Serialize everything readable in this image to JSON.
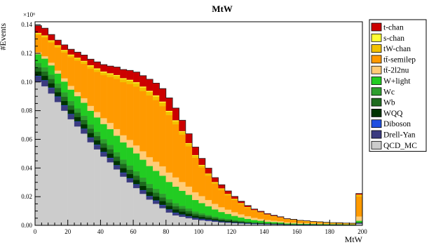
{
  "chart_data": {
    "type": "bar",
    "stacked": true,
    "title": "MtW",
    "xlabel": "MtW",
    "ylabel": "#Events",
    "y_multiplier_label": "×10⁶",
    "xlim": [
      0,
      200
    ],
    "ylim": [
      0,
      0.142
    ],
    "bin_width": 4,
    "x_ticks": [
      0,
      20,
      40,
      60,
      80,
      100,
      120,
      140,
      160,
      180,
      200
    ],
    "x_tick_labels": [
      "0",
      "20",
      "40",
      "60",
      "80",
      "100",
      "120",
      "140",
      "160",
      "180",
      "200"
    ],
    "y_ticks": [
      0,
      0.02,
      0.04,
      0.06,
      0.08,
      0.1,
      0.12,
      0.14
    ],
    "y_tick_labels": [
      "0.00",
      "0.02",
      "0.04",
      "0.06",
      "0.08",
      "0.10",
      "0.12",
      "0.14"
    ],
    "legend_position": "right",
    "x": [
      2,
      6,
      10,
      14,
      18,
      22,
      26,
      30,
      34,
      38,
      42,
      46,
      50,
      54,
      58,
      62,
      66,
      70,
      74,
      78,
      82,
      86,
      90,
      94,
      98,
      102,
      106,
      110,
      114,
      118,
      122,
      126,
      130,
      134,
      138,
      142,
      146,
      150,
      154,
      158,
      162,
      166,
      170,
      174,
      178,
      182,
      186,
      190,
      194,
      198
    ],
    "series": [
      {
        "name": "QCD_MC",
        "color": "#cccccc",
        "values": [
          0.1,
          0.097,
          0.092,
          0.086,
          0.08,
          0.074,
          0.069,
          0.064,
          0.058,
          0.053,
          0.048,
          0.044,
          0.039,
          0.034,
          0.03,
          0.026,
          0.022,
          0.018,
          0.015,
          0.012,
          0.009,
          0.007,
          0.006,
          0.005,
          0.004,
          0.0035,
          0.003,
          0.0025,
          0.002,
          0.0018,
          0.0015,
          0.0013,
          0.0011,
          0.0009,
          0.0008,
          0.0007,
          0.0006,
          0.0005,
          0.0004,
          0.0004,
          0.0003,
          0.0003,
          0.0003,
          0.0002,
          0.0002,
          0.0002,
          0.0002,
          0.0001,
          0.0001,
          0.0012
        ]
      },
      {
        "name": "Drell-Yan",
        "color": "#3b3b80",
        "values": [
          0.004,
          0.004,
          0.0038,
          0.0036,
          0.0035,
          0.0034,
          0.0033,
          0.0032,
          0.0031,
          0.003,
          0.0029,
          0.0028,
          0.0027,
          0.0026,
          0.0025,
          0.0024,
          0.0023,
          0.0022,
          0.0021,
          0.002,
          0.0018,
          0.0016,
          0.0014,
          0.0012,
          0.001,
          0.0009,
          0.0008,
          0.0007,
          0.0006,
          0.0005,
          0.0004,
          0.0004,
          0.0003,
          0.0003,
          0.0002,
          0.0002,
          0.0002,
          0.0002,
          0.0001,
          0.0001,
          0.0001,
          0.0001,
          0.0001,
          0.0001,
          0.0001,
          0.0001,
          0.0001,
          0.0001,
          0.0001,
          0.0003
        ]
      },
      {
        "name": "Diboson",
        "color": "#1f4fe0",
        "values": [
          0.0003,
          0.0003,
          0.0003,
          0.0003,
          0.0003,
          0.0003,
          0.0003,
          0.0003,
          0.0003,
          0.0003,
          0.0003,
          0.0003,
          0.0003,
          0.0003,
          0.0003,
          0.0003,
          0.0003,
          0.0003,
          0.0003,
          0.0003,
          0.0003,
          0.0003,
          0.0002,
          0.0002,
          0.0002,
          0.0002,
          0.0002,
          0.0002,
          0.0001,
          0.0001,
          0.0001,
          0.0001,
          0.0001,
          0.0001,
          0.0001,
          0.0001,
          0.0001,
          0.0001,
          0.0001,
          0.0001,
          0.0001,
          0.0001,
          0.0001,
          0.0001,
          0.0001,
          0.0001,
          0.0001,
          0.0001,
          0.0001,
          0.0001
        ]
      },
      {
        "name": "WQQ",
        "color": "#003300",
        "values": [
          0.003,
          0.003,
          0.003,
          0.003,
          0.003,
          0.003,
          0.003,
          0.003,
          0.003,
          0.003,
          0.003,
          0.003,
          0.003,
          0.003,
          0.003,
          0.003,
          0.0029,
          0.0028,
          0.0027,
          0.0026,
          0.0024,
          0.0022,
          0.002,
          0.0018,
          0.0015,
          0.0013,
          0.0011,
          0.0009,
          0.0008,
          0.0007,
          0.0006,
          0.0005,
          0.0004,
          0.0003,
          0.0003,
          0.0002,
          0.0002,
          0.0002,
          0.0001,
          0.0001,
          0.0001,
          0.0001,
          0.0001,
          0.0001,
          0.0001,
          0.0001,
          0.0001,
          0.0001,
          0.0001,
          0.0002
        ]
      },
      {
        "name": "Wb",
        "color": "#1e6b1e",
        "values": [
          0.003,
          0.003,
          0.003,
          0.003,
          0.003,
          0.003,
          0.003,
          0.003,
          0.003,
          0.003,
          0.003,
          0.003,
          0.003,
          0.003,
          0.003,
          0.003,
          0.0029,
          0.0028,
          0.0027,
          0.0026,
          0.0024,
          0.0022,
          0.002,
          0.0018,
          0.0015,
          0.0013,
          0.0011,
          0.0009,
          0.0008,
          0.0007,
          0.0006,
          0.0005,
          0.0004,
          0.0003,
          0.0003,
          0.0002,
          0.0002,
          0.0002,
          0.0001,
          0.0001,
          0.0001,
          0.0001,
          0.0001,
          0.0001,
          0.0001,
          0.0001,
          0.0001,
          0.0001,
          0.0001,
          0.0002
        ]
      },
      {
        "name": "Wc",
        "color": "#2e9e2e",
        "values": [
          0.003,
          0.003,
          0.003,
          0.003,
          0.003,
          0.003,
          0.003,
          0.003,
          0.003,
          0.003,
          0.003,
          0.003,
          0.003,
          0.003,
          0.003,
          0.003,
          0.0029,
          0.0028,
          0.0027,
          0.0026,
          0.0024,
          0.0022,
          0.002,
          0.0018,
          0.0015,
          0.0013,
          0.0011,
          0.0009,
          0.0008,
          0.0007,
          0.0006,
          0.0005,
          0.0004,
          0.0003,
          0.0003,
          0.0002,
          0.0002,
          0.0002,
          0.0001,
          0.0001,
          0.0001,
          0.0001,
          0.0001,
          0.0001,
          0.0001,
          0.0001,
          0.0001,
          0.0001,
          0.0001,
          0.0002
        ]
      },
      {
        "name": "W+light",
        "color": "#22cc22",
        "values": [
          0.006,
          0.006,
          0.0065,
          0.007,
          0.0075,
          0.008,
          0.0085,
          0.009,
          0.0095,
          0.01,
          0.0105,
          0.011,
          0.0115,
          0.012,
          0.0125,
          0.0125,
          0.0125,
          0.0125,
          0.0125,
          0.0125,
          0.012,
          0.0115,
          0.0105,
          0.0095,
          0.008,
          0.007,
          0.006,
          0.005,
          0.0042,
          0.0035,
          0.0028,
          0.0022,
          0.0018,
          0.0015,
          0.0012,
          0.001,
          0.0008,
          0.0006,
          0.0005,
          0.0004,
          0.0003,
          0.0003,
          0.0002,
          0.0002,
          0.0002,
          0.0001,
          0.0001,
          0.0001,
          0.0001,
          0.001
        ]
      },
      {
        "name": "tt̄-2l2nu",
        "color": "#ffcc77",
        "values": [
          0.0015,
          0.0017,
          0.0019,
          0.0021,
          0.0023,
          0.0026,
          0.0029,
          0.0032,
          0.0035,
          0.0038,
          0.0041,
          0.0044,
          0.0047,
          0.005,
          0.0053,
          0.0056,
          0.0059,
          0.0062,
          0.0064,
          0.0066,
          0.0066,
          0.0065,
          0.0062,
          0.0058,
          0.0054,
          0.0049,
          0.0044,
          0.0039,
          0.0034,
          0.003,
          0.0026,
          0.0022,
          0.0019,
          0.0016,
          0.0014,
          0.0012,
          0.001,
          0.0009,
          0.0008,
          0.0007,
          0.0006,
          0.0005,
          0.0004,
          0.0004,
          0.0003,
          0.0003,
          0.0003,
          0.0002,
          0.0002,
          0.003
        ]
      },
      {
        "name": "tt̄-semilep",
        "color": "#ff9a00",
        "values": [
          0.012,
          0.013,
          0.014,
          0.016,
          0.018,
          0.02,
          0.022,
          0.024,
          0.026,
          0.028,
          0.03,
          0.032,
          0.035,
          0.037,
          0.039,
          0.041,
          0.042,
          0.043,
          0.043,
          0.042,
          0.04,
          0.037,
          0.033,
          0.028,
          0.024,
          0.02,
          0.017,
          0.014,
          0.012,
          0.01,
          0.0085,
          0.007,
          0.0058,
          0.0048,
          0.004,
          0.0034,
          0.0028,
          0.0023,
          0.0019,
          0.0016,
          0.0013,
          0.0011,
          0.0009,
          0.0008,
          0.0006,
          0.0005,
          0.0004,
          0.0004,
          0.0003,
          0.014
        ]
      },
      {
        "name": "tW-chan",
        "color": "#f2c200",
        "values": [
          0.001,
          0.001,
          0.0011,
          0.0012,
          0.0013,
          0.0014,
          0.0015,
          0.0016,
          0.0017,
          0.0018,
          0.0019,
          0.002,
          0.0021,
          0.0022,
          0.0023,
          0.0024,
          0.0025,
          0.0026,
          0.0026,
          0.0025,
          0.0024,
          0.0022,
          0.002,
          0.0018,
          0.0016,
          0.0014,
          0.0012,
          0.001,
          0.0009,
          0.0008,
          0.0007,
          0.0006,
          0.0005,
          0.0004,
          0.0004,
          0.0003,
          0.0003,
          0.0003,
          0.0002,
          0.0002,
          0.0002,
          0.0002,
          0.0001,
          0.0001,
          0.0001,
          0.0001,
          0.0001,
          0.0001,
          0.0001,
          0.001
        ]
      },
      {
        "name": "s-chan",
        "color": "#ffff33",
        "values": [
          0.0005,
          0.0005,
          0.0005,
          0.0005,
          0.0005,
          0.0005,
          0.0005,
          0.0005,
          0.0006,
          0.0006,
          0.0006,
          0.0006,
          0.0006,
          0.0006,
          0.0007,
          0.0007,
          0.0007,
          0.0007,
          0.0007,
          0.0007,
          0.0006,
          0.0006,
          0.0005,
          0.0005,
          0.0004,
          0.0004,
          0.0003,
          0.0003,
          0.0002,
          0.0002,
          0.0002,
          0.0002,
          0.0001,
          0.0001,
          0.0001,
          0.0001,
          0.0001,
          0.0001,
          0.0001,
          0.0001,
          0.0001,
          0.0001,
          0.0001,
          0.0001,
          0.0001,
          0.0001,
          0.0001,
          0.0001,
          0.0001,
          0.0002
        ]
      },
      {
        "name": "t-chan",
        "color": "#cc0000",
        "values": [
          0.005,
          0.005,
          0.004,
          0.0035,
          0.0035,
          0.0036,
          0.0038,
          0.004,
          0.0042,
          0.0045,
          0.0048,
          0.005,
          0.0055,
          0.006,
          0.0065,
          0.007,
          0.0075,
          0.008,
          0.0085,
          0.009,
          0.009,
          0.0085,
          0.0075,
          0.0065,
          0.0055,
          0.0045,
          0.0037,
          0.003,
          0.0025,
          0.002,
          0.0016,
          0.0013,
          0.001,
          0.0008,
          0.0007,
          0.0006,
          0.0005,
          0.0004,
          0.0003,
          0.0003,
          0.0002,
          0.0002,
          0.0002,
          0.0002,
          0.0001,
          0.0001,
          0.0001,
          0.0001,
          0.0001,
          0.0008
        ]
      }
    ],
    "legend_order": [
      "t-chan",
      "s-chan",
      "tW-chan",
      "tt̄-semilep",
      "tt̄-2l2nu",
      "W+light",
      "Wc",
      "Wb",
      "WQQ",
      "Diboson",
      "Drell-Yan",
      "QCD_MC"
    ]
  }
}
